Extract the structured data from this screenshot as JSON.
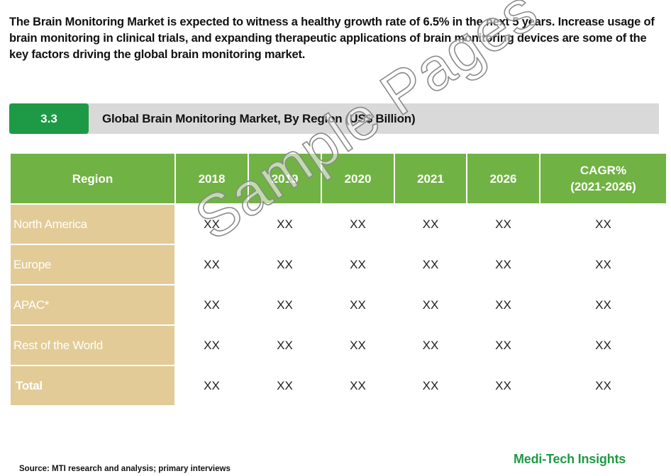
{
  "intro_text": "The Brain Monitoring Market is expected to witness a healthy growth rate of 6.5% in the next 5 years. Increase usage of brain monitoring in clinical trials, and expanding therapeutic applications of brain monitoring devices are some of the key factors driving the global brain monitoring market.",
  "section": {
    "number": "3.3",
    "title": "Global Brain Monitoring Market, By Region (US$ Billion)"
  },
  "table": {
    "headers": {
      "region": "Region",
      "y2018": "2018",
      "y2019": "2019",
      "y2020": "2020",
      "y2021": "2021",
      "y2026": "2026",
      "cagr_line1": "CAGR%",
      "cagr_line2": "(2021-2026)"
    },
    "rows": [
      {
        "region": "North America",
        "values": [
          "XX",
          "XX",
          "XX",
          "XX",
          "XX",
          "XX"
        ]
      },
      {
        "region": "Europe",
        "values": [
          "XX",
          "XX",
          "XX",
          "XX",
          "XX",
          "XX"
        ]
      },
      {
        "region": "APAC*",
        "values": [
          "XX",
          "XX",
          "XX",
          "XX",
          "XX",
          "XX"
        ]
      },
      {
        "region": "Rest of the World",
        "values": [
          "XX",
          "XX",
          "XX",
          "XX",
          "XX",
          "XX"
        ]
      },
      {
        "region": "Total",
        "values": [
          "XX",
          "XX",
          "XX",
          "XX",
          "XX",
          "XX"
        ]
      }
    ]
  },
  "source": "Source: MTI research and analysis; primary interviews",
  "brand": "Medi-Tech Insights",
  "watermark": "Sample Pages",
  "colors": {
    "accent_green": "#1e9a46",
    "header_green": "#71b244",
    "region_tan": "#e2cb96",
    "bar_gray": "#d9d9d9"
  }
}
